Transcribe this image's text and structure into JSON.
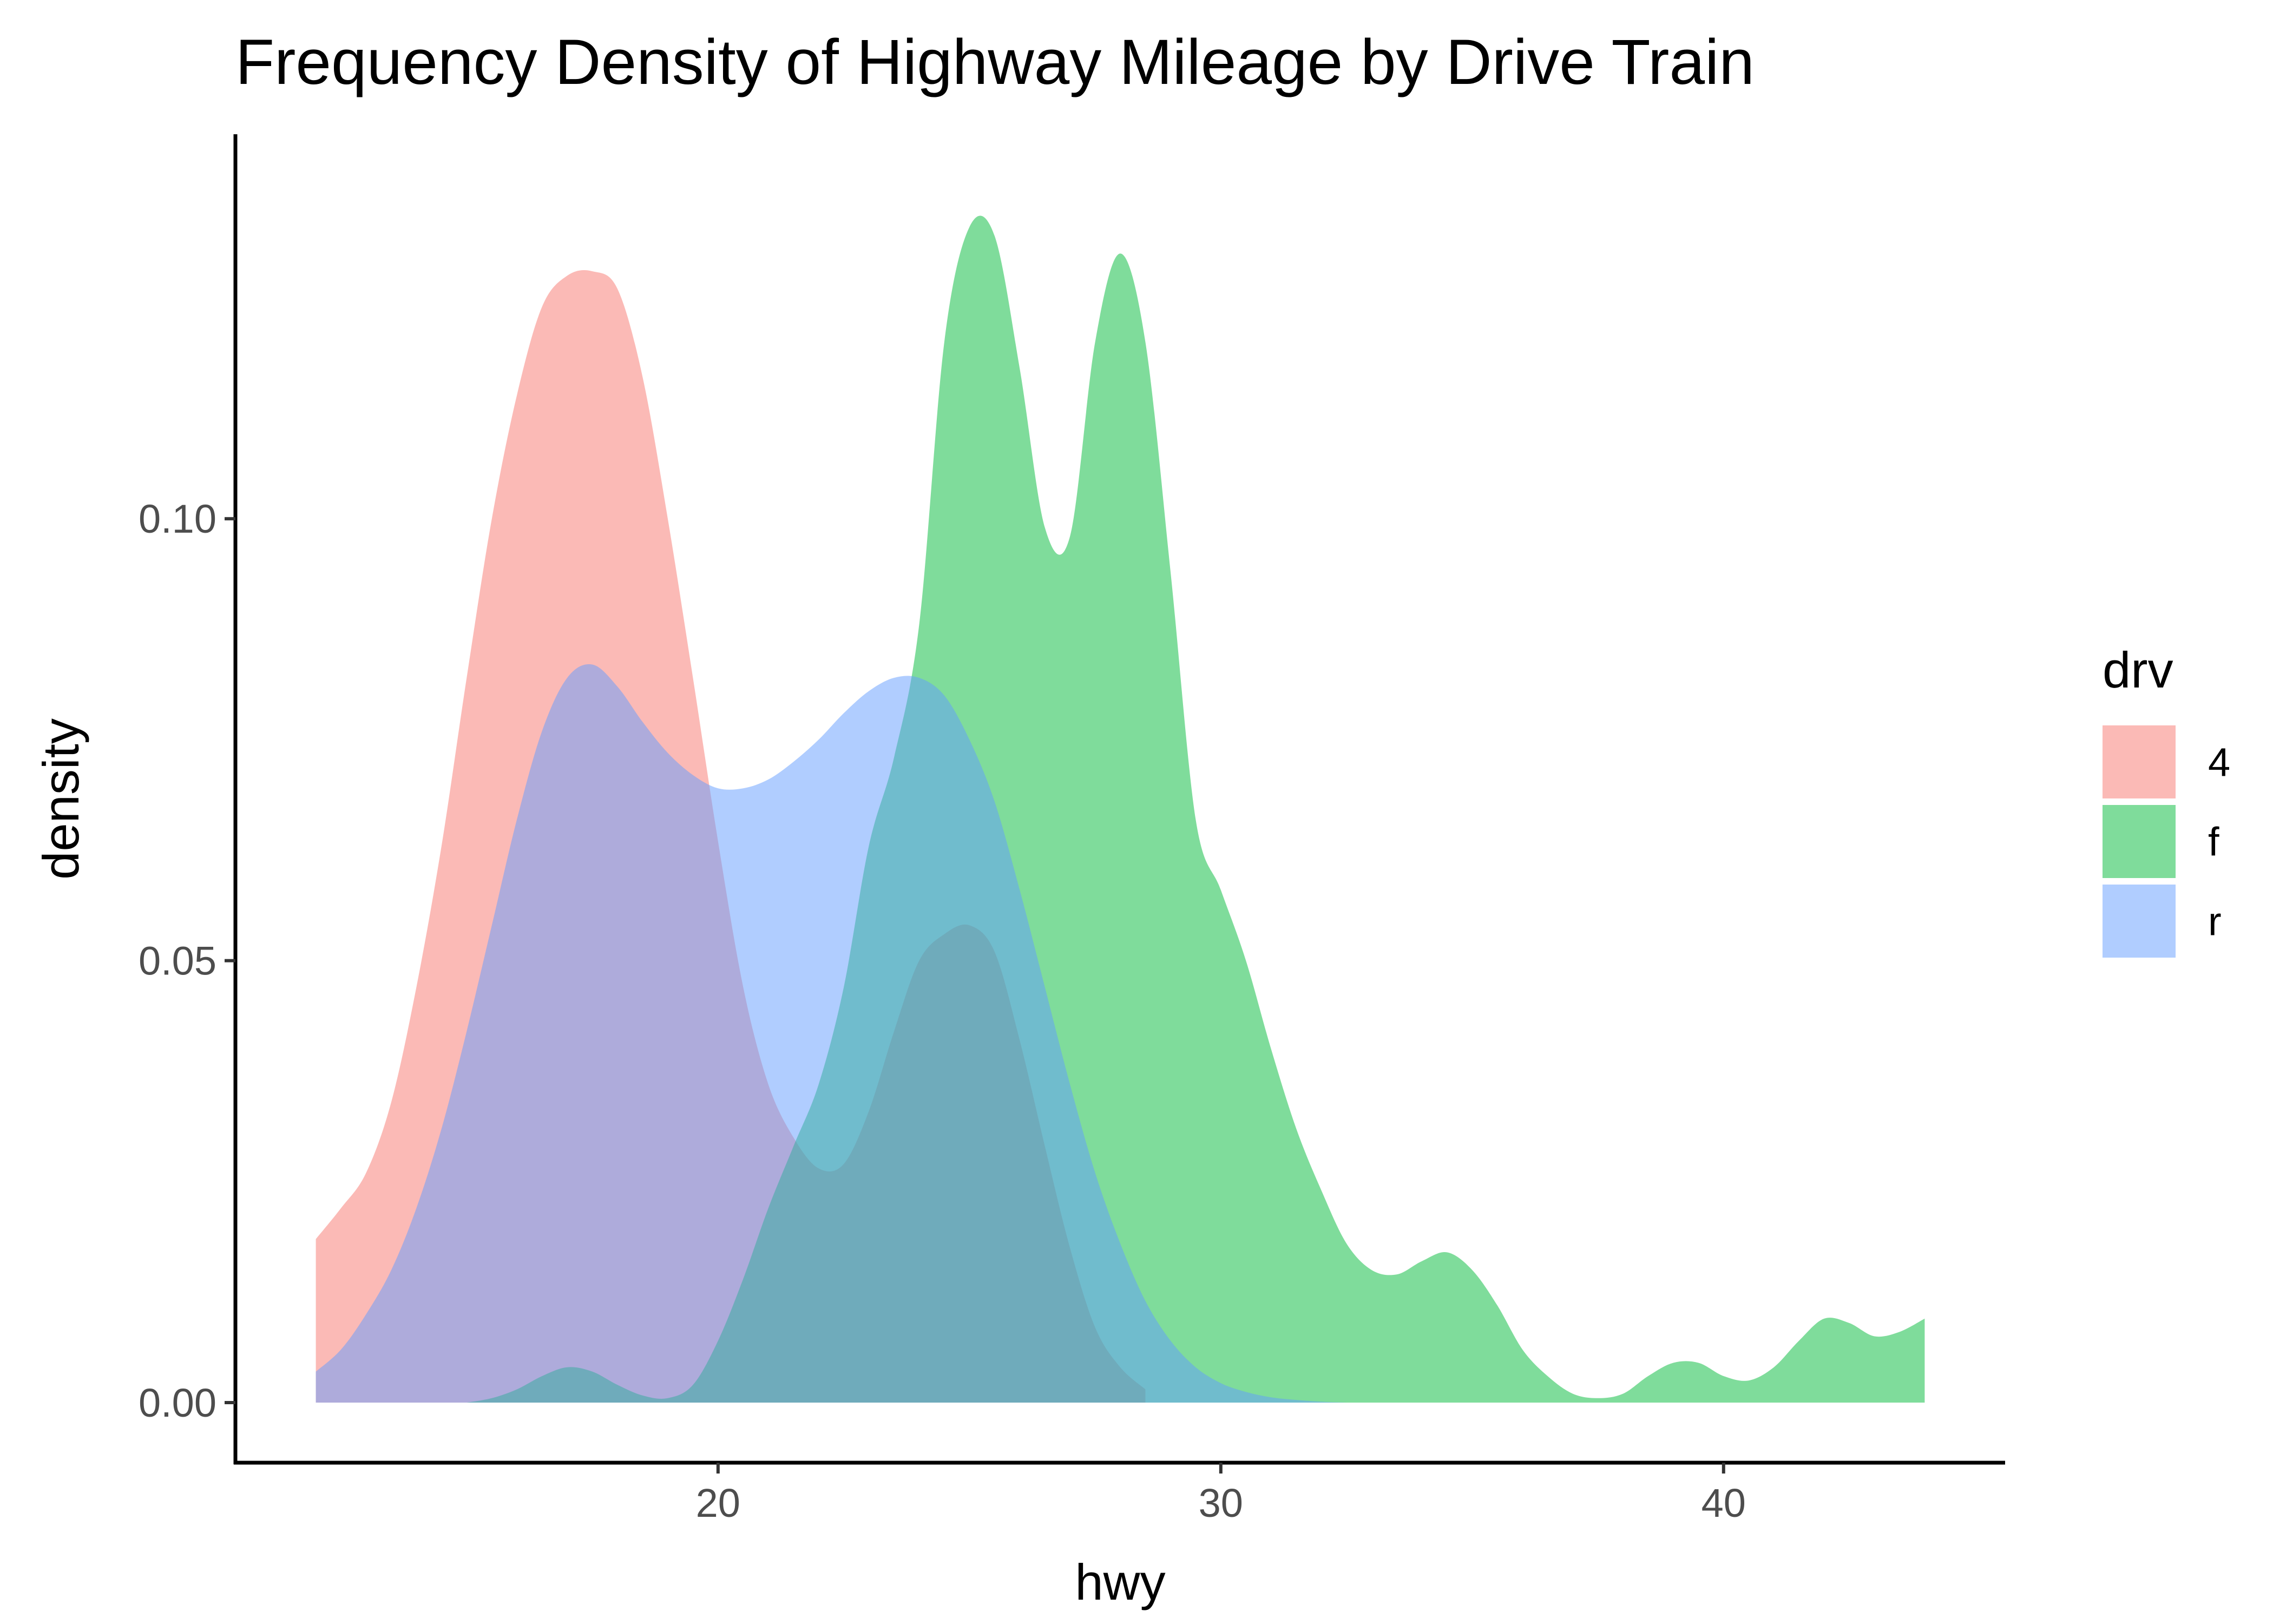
{
  "chart_data": {
    "type": "area",
    "title": "Frequency Density of Highway Mileage by Drive Train",
    "xlabel": "hwy",
    "ylabel": "density",
    "xlim": [
      10.4,
      45.6
    ],
    "ylim": [
      -0.0068,
      0.1435
    ],
    "x_ticks": [
      "20",
      "30",
      "40"
    ],
    "x_tick_values": [
      20,
      30,
      40
    ],
    "y_ticks": [
      "0.00",
      "0.05",
      "0.10"
    ],
    "y_tick_values": [
      0,
      0.05,
      0.1
    ],
    "grid": false,
    "legend": {
      "title": "drv",
      "placement": "right"
    },
    "fill_alpha": 0.5,
    "series": [
      {
        "name": "4",
        "color": "#F8766D",
        "x": [
          12,
          12.5,
          13,
          13.5,
          14,
          14.5,
          15,
          15.5,
          16,
          16.5,
          17,
          17.5,
          18,
          18.5,
          19,
          19.5,
          20,
          20.5,
          21,
          21.5,
          22,
          22.5,
          23,
          23.5,
          24,
          24.5,
          25,
          25.5,
          26,
          26.5,
          27,
          27.5,
          28,
          28.5
        ],
        "y": [
          0.0185,
          0.022,
          0.026,
          0.034,
          0.047,
          0.063,
          0.082,
          0.1,
          0.114,
          0.124,
          0.1275,
          0.128,
          0.126,
          0.116,
          0.1,
          0.082,
          0.0635,
          0.047,
          0.036,
          0.03,
          0.0265,
          0.027,
          0.033,
          0.042,
          0.05,
          0.053,
          0.054,
          0.051,
          0.041,
          0.029,
          0.0175,
          0.0085,
          0.004,
          0.0015
        ]
      },
      {
        "name": "f",
        "color": "#00BA38",
        "x": [
          15,
          15.5,
          16,
          16.5,
          17,
          17.5,
          18,
          18.5,
          19,
          19.5,
          20,
          20.5,
          21,
          21.5,
          22,
          22.5,
          23,
          23.5,
          24,
          24.5,
          25,
          25.5,
          26,
          26.5,
          27,
          27.5,
          28,
          28.5,
          29,
          29.5,
          30,
          30.5,
          31,
          31.5,
          32,
          32.5,
          33,
          33.5,
          34,
          34.5,
          35,
          35.5,
          36,
          36.5,
          37,
          37.5,
          38,
          38.5,
          39,
          39.5,
          40,
          40.5,
          41,
          41.5,
          42,
          42.5,
          43,
          43.5,
          44
        ],
        "y": [
          0,
          0.0005,
          0.0015,
          0.003,
          0.004,
          0.0035,
          0.002,
          0.0008,
          0.0005,
          0.002,
          0.007,
          0.014,
          0.022,
          0.029,
          0.036,
          0.047,
          0.063,
          0.073,
          0.088,
          0.12,
          0.133,
          0.132,
          0.117,
          0.099,
          0.098,
          0.12,
          0.13,
          0.12,
          0.094,
          0.066,
          0.058,
          0.05,
          0.04,
          0.031,
          0.024,
          0.018,
          0.015,
          0.0145,
          0.016,
          0.017,
          0.015,
          0.011,
          0.006,
          0.003,
          0.001,
          0.0005,
          0.001,
          0.003,
          0.0045,
          0.0045,
          0.003,
          0.0025,
          0.004,
          0.007,
          0.0095,
          0.009,
          0.0075,
          0.008,
          0.0095
        ]
      },
      {
        "name": "r",
        "color": "#619CFF",
        "x": [
          12,
          12.5,
          13,
          13.5,
          14,
          14.5,
          15,
          15.5,
          16,
          16.5,
          17,
          17.5,
          18,
          18.5,
          19,
          19.5,
          20,
          20.5,
          21,
          21.5,
          22,
          22.5,
          23,
          23.5,
          24,
          24.5,
          25,
          25.5,
          26,
          26.5,
          27,
          27.5,
          28,
          28.5,
          29,
          29.5,
          30,
          30.5,
          31,
          31.5,
          32,
          32.5
        ],
        "y": [
          0.0035,
          0.006,
          0.01,
          0.015,
          0.022,
          0.031,
          0.042,
          0.054,
          0.066,
          0.076,
          0.082,
          0.0835,
          0.081,
          0.077,
          0.0735,
          0.071,
          0.0695,
          0.0695,
          0.0705,
          0.0725,
          0.075,
          0.078,
          0.0805,
          0.082,
          0.082,
          0.08,
          0.075,
          0.068,
          0.058,
          0.047,
          0.036,
          0.026,
          0.018,
          0.0115,
          0.007,
          0.004,
          0.0022,
          0.0012,
          0.0006,
          0.0003,
          0.0001,
          0
        ]
      }
    ]
  }
}
